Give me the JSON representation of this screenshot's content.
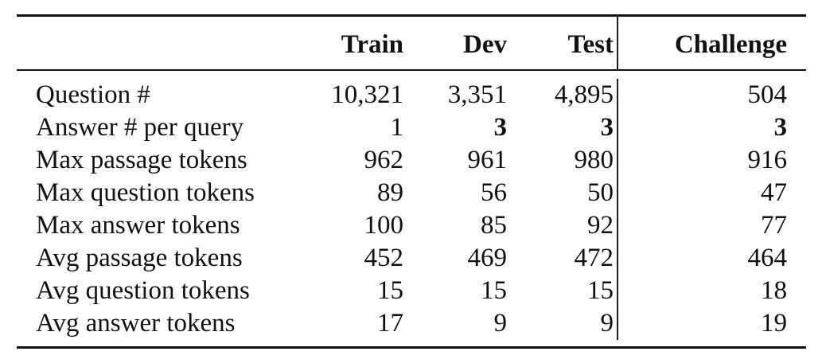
{
  "columns": [
    "",
    "Train",
    "Dev",
    "Test",
    "Challenge"
  ],
  "rows": [
    {
      "label": "Question #",
      "cells": [
        "10,321",
        "3,351",
        "4,895",
        "504"
      ],
      "bold": [
        false,
        false,
        false,
        false
      ]
    },
    {
      "label": "Answer # per query",
      "cells": [
        "1",
        "3",
        "3",
        "3"
      ],
      "bold": [
        false,
        true,
        true,
        true
      ]
    },
    {
      "label": "Max passage tokens",
      "cells": [
        "962",
        "961",
        "980",
        "916"
      ],
      "bold": [
        false,
        false,
        false,
        false
      ]
    },
    {
      "label": "Max question tokens",
      "cells": [
        "89",
        "56",
        "50",
        "47"
      ],
      "bold": [
        false,
        false,
        false,
        false
      ]
    },
    {
      "label": "Max answer tokens",
      "cells": [
        "100",
        "85",
        "92",
        "77"
      ],
      "bold": [
        false,
        false,
        false,
        false
      ]
    },
    {
      "label": "Avg passage tokens",
      "cells": [
        "452",
        "469",
        "472",
        "464"
      ],
      "bold": [
        false,
        false,
        false,
        false
      ]
    },
    {
      "label": "Avg question tokens",
      "cells": [
        "15",
        "15",
        "15",
        "18"
      ],
      "bold": [
        false,
        false,
        false,
        false
      ]
    },
    {
      "label": "Avg answer tokens",
      "cells": [
        "17",
        "9",
        "9",
        "19"
      ],
      "bold": [
        false,
        false,
        false,
        false
      ]
    }
  ]
}
